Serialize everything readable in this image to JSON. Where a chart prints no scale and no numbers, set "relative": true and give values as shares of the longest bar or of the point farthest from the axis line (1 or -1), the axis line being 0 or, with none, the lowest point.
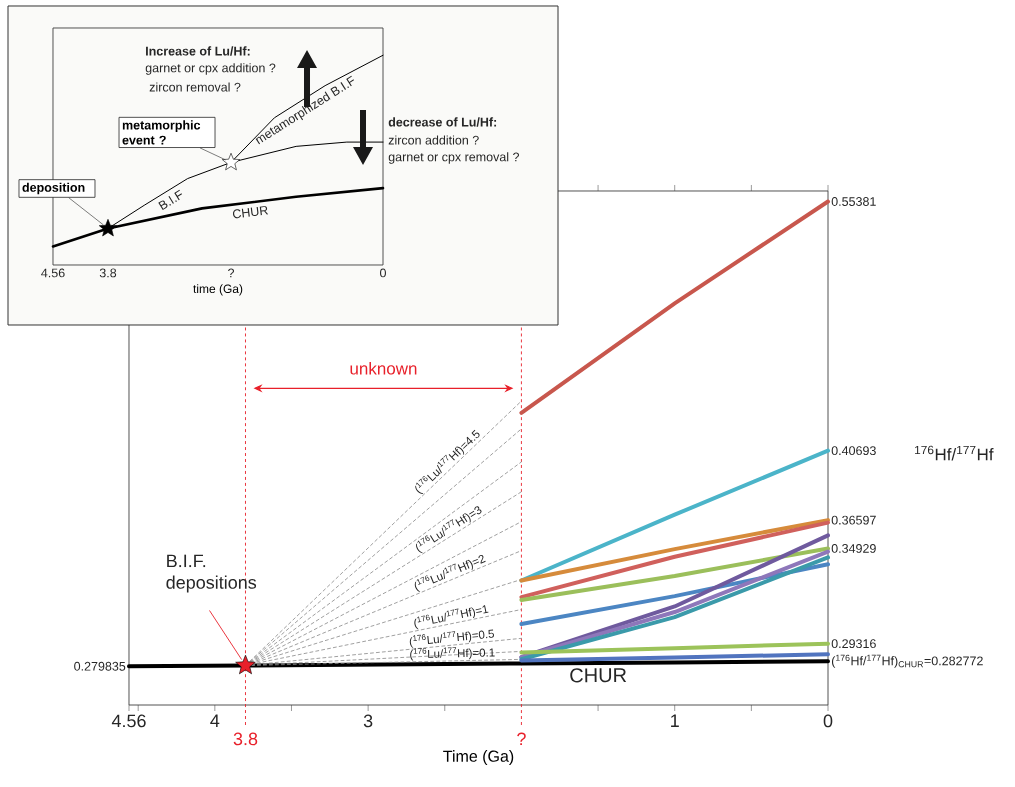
{
  "chart_data": [
    {
      "type": "line",
      "xlabel": "Time (Ga)",
      "ylabel": "$^{176}$Hf/$^{177}$Hf",
      "xlim": [
        4.56,
        0
      ],
      "ylim": [
        0.257,
        0.56
      ],
      "xticks": [
        4.56,
        {
          "value": 4.5,
          "label": null
        },
        4,
        {
          "value": 3.5,
          "label": null
        },
        3,
        {
          "value": 2.5,
          "label": null
        },
        {
          "value": 1.5,
          "label": null
        },
        1,
        {
          "value": 0.5,
          "label": null
        },
        0
      ],
      "tick_labels": "x",
      "ref_lines": [
        {
          "axis": "x",
          "value": 3.8,
          "label": "3.8",
          "color": "#e8202a",
          "line_style": "dashed"
        },
        {
          "axis": "x",
          "value": 2,
          "label": "?",
          "color": "#e8202a",
          "line_style": "dashed"
        }
      ],
      "series": [
        {
          "name": "CHUR",
          "color": "#000000",
          "x": [
            4.56,
            3.8,
            2,
            1,
            0
          ],
          "values": [
            0.279835,
            0.2803,
            0.2815,
            0.2821,
            0.282772
          ],
          "value_labels": [
            "0.279835",
            null,
            null,
            null,
            "($^{176}$Hf/$^{177}$Hf)$_{CHUR}$=0.282772"
          ]
        },
        {
          "color": "#888888",
          "line_style": "dashed",
          "x": [
            3.8,
            2
          ],
          "values": [
            0.2803,
            0.4362
          ]
        },
        {
          "color": "#888888",
          "line_style": "dashed",
          "x": [
            3.8,
            2
          ],
          "values": [
            0.2803,
            0.4198
          ]
        },
        {
          "color": "#888888",
          "line_style": "dashed",
          "x": [
            3.8,
            2
          ],
          "values": [
            0.2803,
            0.4003
          ]
        },
        {
          "color": "#888888",
          "line_style": "dashed",
          "x": [
            3.8,
            2
          ],
          "values": [
            0.2803,
            0.3827
          ]
        },
        {
          "color": "#888888",
          "line_style": "dashed",
          "x": [
            3.8,
            2
          ],
          "values": [
            0.2803,
            0.3651
          ]
        },
        {
          "color": "#888888",
          "line_style": "dashed",
          "x": [
            3.8,
            2
          ],
          "values": [
            0.2803,
            0.348
          ]
        },
        {
          "color": "#888888",
          "line_style": "dashed",
          "x": [
            3.8,
            2
          ],
          "values": [
            0.2803,
            0.331
          ]
        },
        {
          "color": "#888888",
          "line_style": "dashed",
          "x": [
            3.8,
            2
          ],
          "values": [
            0.2803,
            0.3133
          ]
        },
        {
          "color": "#888888",
          "line_style": "dashed",
          "x": [
            3.8,
            2
          ],
          "values": [
            0.2803,
            0.2963
          ]
        },
        {
          "color": "#888888",
          "line_style": "dashed",
          "x": [
            3.8,
            2
          ],
          "values": [
            0.2803,
            0.2886
          ]
        },
        {
          "color": "#888888",
          "line_style": "dashed",
          "x": [
            3.8,
            2
          ],
          "values": [
            0.2803,
            0.2839
          ]
        },
        {
          "color": "#c8574d",
          "x": [
            2,
            1,
            0
          ],
          "values": [
            0.4292,
            0.4938,
            0.55381
          ],
          "value_labels": [
            null,
            null,
            "0.55381"
          ]
        },
        {
          "color": "#4bb4c9",
          "x": [
            2,
            1,
            0
          ],
          "values": [
            0.3304,
            0.3692,
            0.40693
          ],
          "value_labels": [
            null,
            null,
            "0.40693"
          ]
        },
        {
          "color": "#d68b3b",
          "x": [
            2,
            1,
            0
          ],
          "values": [
            0.3304,
            0.3489,
            0.36597
          ],
          "value_labels": [
            null,
            null,
            "0.36597"
          ]
        },
        {
          "color": "#d0605c",
          "x": [
            2,
            1,
            0
          ],
          "values": [
            0.3206,
            0.3444,
            0.3645
          ]
        },
        {
          "color": "#9bbf5b",
          "x": [
            2,
            1,
            0
          ],
          "values": [
            0.3189,
            0.333,
            0.34929
          ],
          "value_labels": [
            null,
            null,
            "0.34929"
          ]
        },
        {
          "color": "#4c86c3",
          "x": [
            2,
            1,
            0
          ],
          "values": [
            0.3047,
            0.3212,
            0.34
          ]
        },
        {
          "color": "#6f5a9e",
          "x": [
            2,
            1,
            0
          ],
          "values": [
            0.2852,
            0.3151,
            0.357
          ]
        },
        {
          "color": "#8e77ba",
          "x": [
            2,
            1,
            0
          ],
          "values": [
            0.2852,
            0.3118,
            0.3474
          ]
        },
        {
          "color": "#3b9aaa",
          "x": [
            2,
            1,
            0
          ],
          "values": [
            0.284,
            0.3088,
            0.344
          ]
        },
        {
          "color": "#9cc35a",
          "x": [
            2,
            1,
            0
          ],
          "values": [
            0.288,
            0.2905,
            0.29316
          ],
          "value_labels": [
            null,
            null,
            "0.29316"
          ]
        },
        {
          "color": "#5174bf",
          "x": [
            2,
            1,
            0
          ],
          "values": [
            0.2833,
            0.285,
            0.2869
          ]
        },
        {
          "type": "scatter",
          "marker": "star",
          "color": "#e8202a",
          "x": [
            3.8
          ],
          "values": [
            0.2803
          ]
        }
      ],
      "annotations": [
        "($^{176}$Lu/$^{177}$Hf)=4.5",
        "($^{176}$Lu/$^{177}$Hf)=3",
        "($^{176}$Lu/$^{177}$Hf)=2",
        "($^{176}$Lu/$^{177}$Hf)=1",
        "($^{176}$Lu/$^{177}$Hf)=0.5",
        "($^{176}$Lu/$^{177}$Hf)=0.1",
        "unknown",
        "B.I.F. depositions"
      ]
    },
    {
      "type": "line",
      "relative": true,
      "xlabel": "time (Ga)",
      "xlim": [
        4.56,
        0
      ],
      "xticks": [
        4.56,
        3.8,
        {
          "value": 2.1,
          "label": "?"
        },
        0
      ],
      "series": [
        {
          "name": "CHUR",
          "color": "#000000",
          "x": [
            4.56,
            3.8,
            2.5,
            1.2,
            0
          ],
          "values": [
            0.0886,
            0.174,
            0.27,
            0.325,
            0.3663
          ]
        },
        {
          "name": "B.I.F",
          "color": "#000000",
          "x": [
            3.8,
            3.3,
            2.7,
            2.1
          ],
          "values": [
            0.174,
            0.2845,
            0.412,
            0.489
          ]
        },
        {
          "name": "metamorphized B.I.F",
          "color": "#000000",
          "x": [
            2.1,
            1.5,
            0.8,
            0
          ],
          "values": [
            0.489,
            0.702,
            0.855,
            1
          ]
        },
        {
          "color": "#000000",
          "x": [
            2.1,
            1.2,
            0.5,
            0
          ],
          "values": [
            0.489,
            0.5656,
            0.586,
            0.586
          ]
        },
        {
          "type": "scatter",
          "marker": "star",
          "color": "#000000",
          "x": [
            3.8
          ],
          "values": [
            0.174
          ]
        },
        {
          "type": "scatter",
          "marker": "star",
          "color": "#ffffff",
          "x": [
            2.1
          ],
          "values": [
            0.489
          ]
        }
      ],
      "annotations": [
        "Increase of Lu/Hf:",
        "garnet or cpx addition ?",
        "zircon removal ?",
        "decrease of Lu/Hf:",
        "zircon addition ?",
        "garnet or cpx removal ?",
        "deposition",
        "metamorphic event ?"
      ]
    }
  ]
}
